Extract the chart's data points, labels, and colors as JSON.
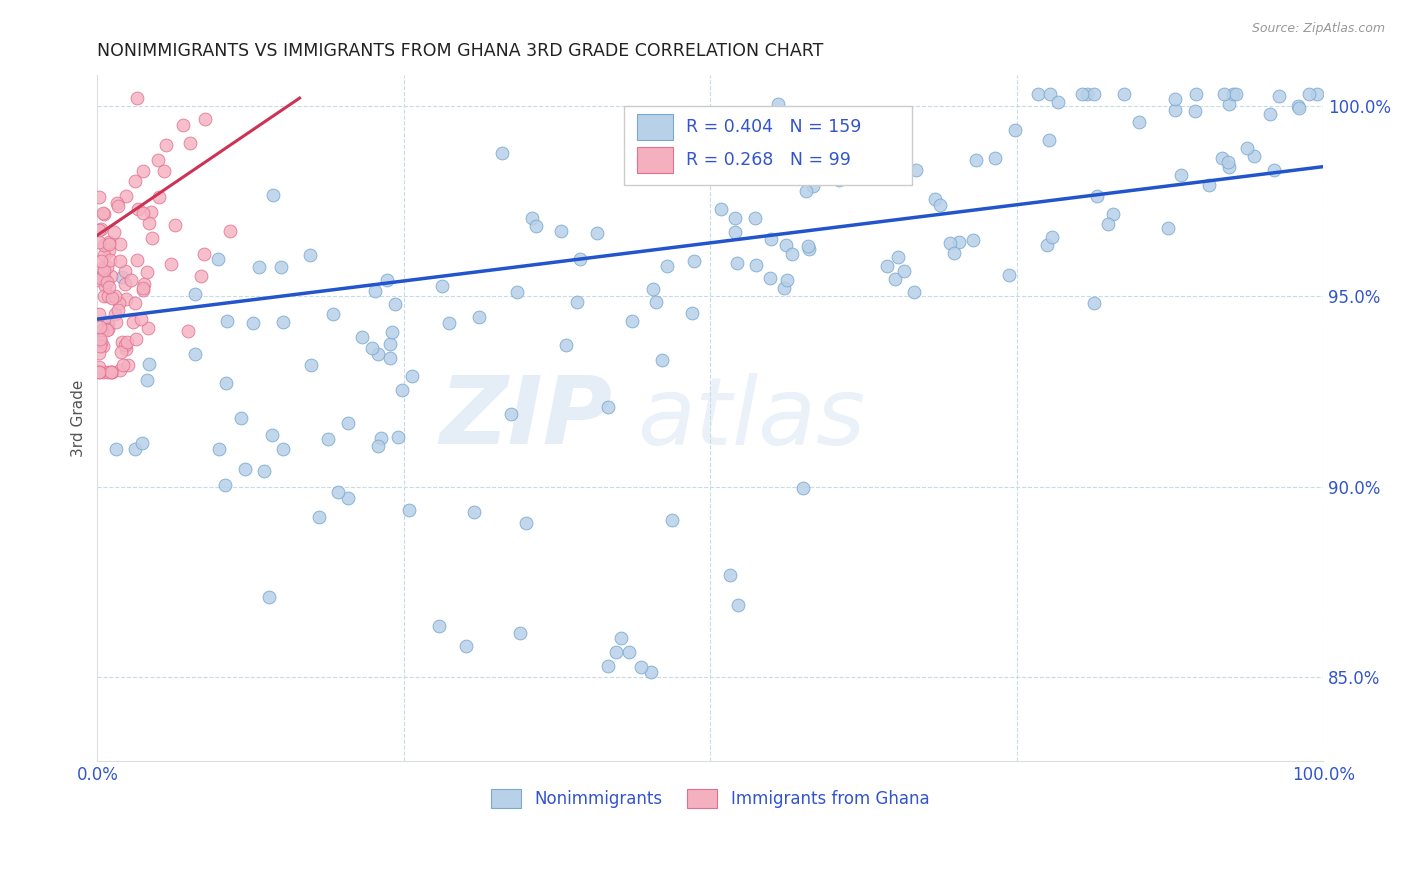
{
  "title": "NONIMMIGRANTS VS IMMIGRANTS FROM GHANA 3RD GRADE CORRELATION CHART",
  "source": "Source: ZipAtlas.com",
  "ylabel": "3rd Grade",
  "watermark_zip": "ZIP",
  "watermark_atlas": "atlas",
  "xlim": [
    0.0,
    1.0
  ],
  "ylim": [
    0.828,
    1.008
  ],
  "yticks": [
    0.85,
    0.9,
    0.95,
    1.0
  ],
  "ytick_labels": [
    "85.0%",
    "90.0%",
    "95.0%",
    "100.0%"
  ],
  "xticks": [
    0.0,
    0.25,
    0.5,
    0.75,
    1.0
  ],
  "xtick_labels": [
    "0.0%",
    "",
    "",
    "",
    "100.0%"
  ],
  "blue_R": 0.404,
  "blue_N": 159,
  "pink_R": 0.268,
  "pink_N": 99,
  "blue_color": "#b8d0e8",
  "blue_edge": "#7aaad0",
  "pink_color": "#f5b0c0",
  "pink_edge": "#e07090",
  "line_blue": "#2255cc",
  "line_pink": "#cc3355",
  "legend_text_color": "#3355cc",
  "title_color": "#222222",
  "grid_color": "#c8dce8",
  "blue_line_x": [
    0.0,
    1.0
  ],
  "blue_line_y": [
    0.944,
    0.984
  ],
  "pink_line_x": [
    0.0,
    0.165
  ],
  "pink_line_y": [
    0.966,
    1.002
  ],
  "blue_seed": 77,
  "pink_seed": 42
}
